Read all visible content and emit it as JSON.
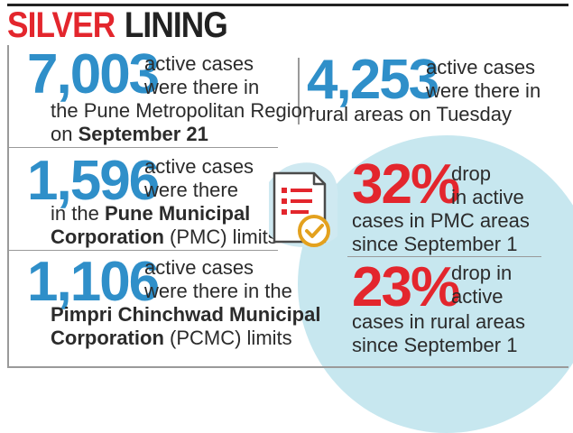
{
  "title": {
    "word1": "SILVER",
    "word2": "LINING"
  },
  "stats": {
    "pmr": {
      "value": "7,003",
      "line1": "active cases",
      "line2": "were there in",
      "line3": "the Pune Metropolitan Region",
      "line4_prefix": "on ",
      "line4_bold": "September 21"
    },
    "rural": {
      "value": "4,253",
      "line1": "active cases",
      "line2": "were there in",
      "line3": "rural areas on Tuesday"
    },
    "pmc": {
      "value": "1,596",
      "line1": "active cases",
      "line2": "were there",
      "line3_prefix": "in the ",
      "line3_bold": "Pune Municipal",
      "line4_bold": "Corporation",
      "line4_suffix": " (PMC) limits"
    },
    "pcmc": {
      "value": "1,106",
      "line1": "active cases",
      "line2": "were there in the",
      "line3_bold": "Pimpri Chinchwad Municipal",
      "line4_bold": "Corporation",
      "line4_suffix": " (PCMC) limits"
    },
    "pmc_drop": {
      "value": "32%",
      "line1": "drop",
      "line2": "in active",
      "line3": "cases in PMC areas",
      "line4": "since September 1"
    },
    "rural_drop": {
      "value": "23%",
      "line1": "drop in",
      "line2": "active",
      "line3": "cases in rural areas",
      "line4": "since September 1"
    }
  },
  "icon": {
    "name": "document-check-icon"
  },
  "colors": {
    "accent_red": "#e3262d",
    "accent_blue": "#2f8fc9",
    "circle_bg": "#c7e7ef",
    "text": "#2b2b2b"
  }
}
